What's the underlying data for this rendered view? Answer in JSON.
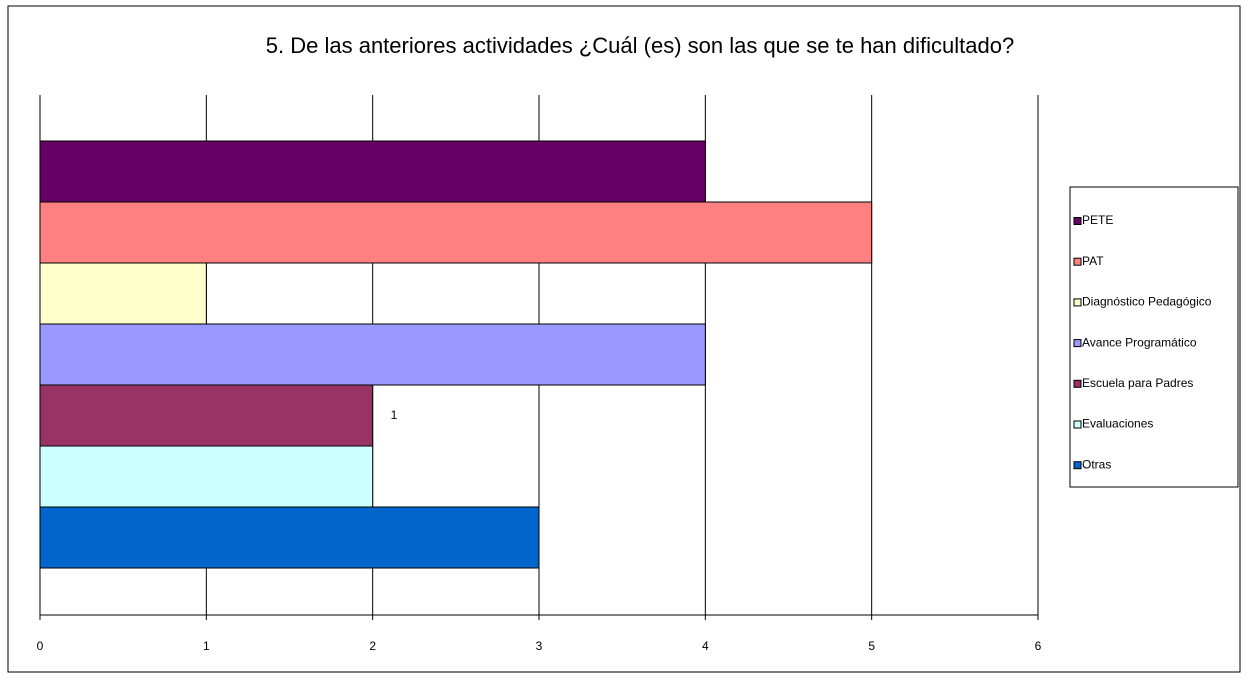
{
  "chart_data": {
    "type": "bar",
    "orientation": "horizontal",
    "title": "5. De las anteriores actividades ¿Cuál (es) son las que se te han dificultado?",
    "series": [
      {
        "name": "PETE",
        "color": "#660066",
        "values": [
          4
        ]
      },
      {
        "name": "PAT",
        "color": "#ff8080",
        "values": [
          5
        ]
      },
      {
        "name": "Diagnóstico Pedagógico",
        "color": "#ffffcc",
        "values": [
          1
        ]
      },
      {
        "name": "Avance Programático",
        "color": "#9999ff",
        "values": [
          4
        ]
      },
      {
        "name": "Escuela para Padres",
        "color": "#993366",
        "values": [
          2
        ]
      },
      {
        "name": "Evaluaciones",
        "color": "#ccffff",
        "values": [
          2
        ]
      },
      {
        "name": "Otras",
        "color": "#0066cc",
        "values": [
          3
        ]
      }
    ],
    "annotations": [
      "1"
    ],
    "xlim": [
      0,
      6
    ],
    "xticks": [
      0,
      1,
      2,
      3,
      4,
      5,
      6
    ],
    "grid": true,
    "legend": "right"
  }
}
